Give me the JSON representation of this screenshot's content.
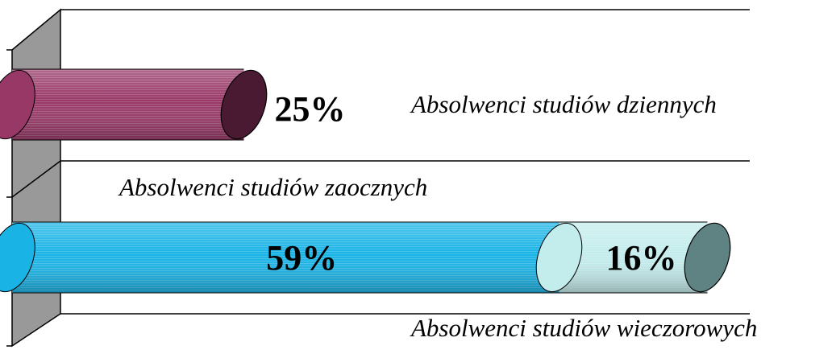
{
  "chart_data": {
    "type": "bar",
    "orientation": "horizontal",
    "stacked": true,
    "categories": [
      null,
      null
    ],
    "series": [
      {
        "name": "Absolwenci studiów dziennych",
        "color": "#983867",
        "cap_color": "#4a1a32",
        "values": [
          25,
          null
        ],
        "value_labels": [
          "25%",
          null
        ]
      },
      {
        "name": "Absolwenci studiów zaocznych",
        "color": "#19b3e6",
        "cap_color": "#0c6f92",
        "values": [
          null,
          59
        ],
        "value_labels": [
          null,
          "59%"
        ]
      },
      {
        "name": "Absolwenci studiów wieczorowych",
        "color": "#c3ecec",
        "cap_color": "#5f8383",
        "values": [
          null,
          16
        ],
        "value_labels": [
          null,
          "16%"
        ]
      }
    ],
    "xlim": [
      0,
      80
    ]
  }
}
